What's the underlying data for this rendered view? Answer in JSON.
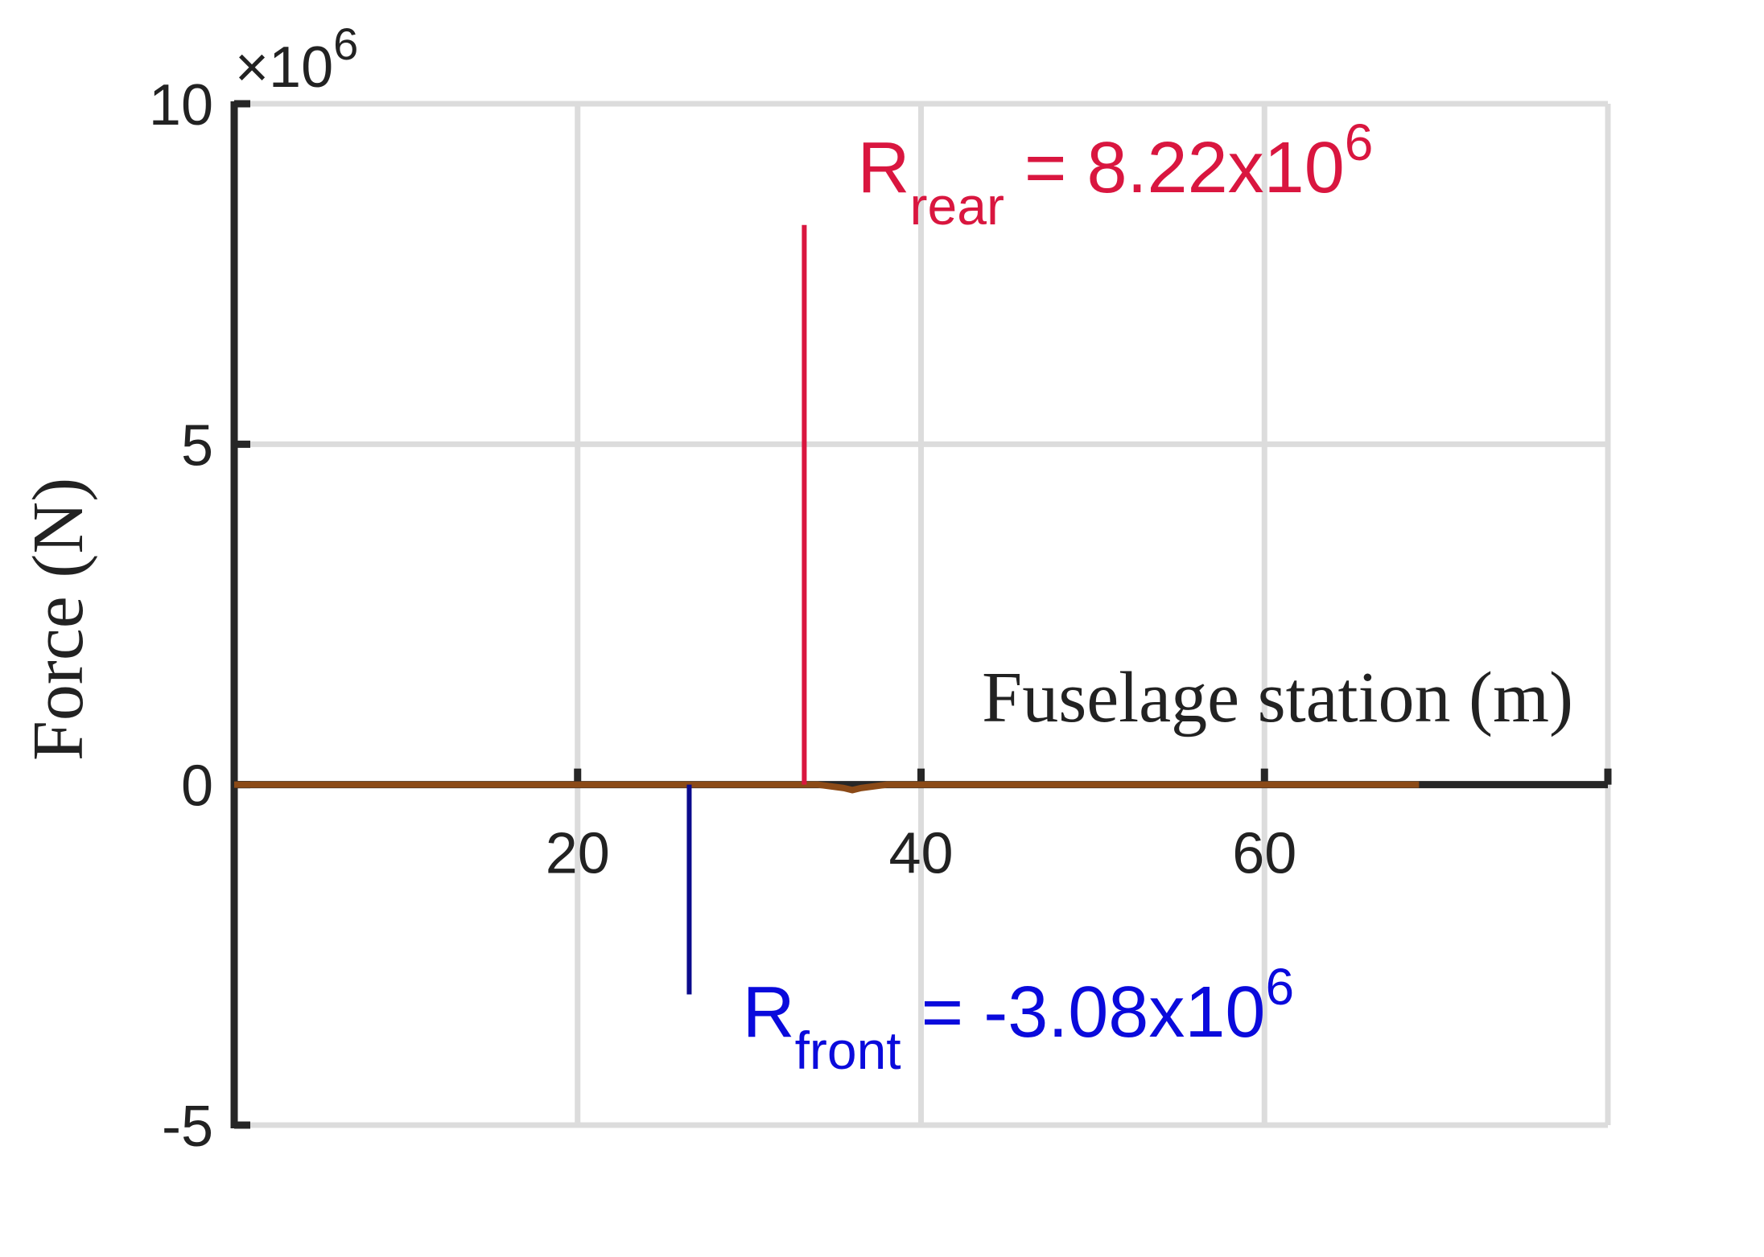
{
  "chart_data": {
    "type": "line",
    "xlabel": "Fuselage station (m)",
    "ylabel": "Force (N)",
    "y_exponent": {
      "base": "×10",
      "power": "6"
    },
    "xlim": [
      0,
      80
    ],
    "ylim": [
      -5,
      10
    ],
    "x_ticks": [
      20,
      40,
      60
    ],
    "x_tick_labels": [
      "20",
      "40",
      "60"
    ],
    "y_ticks": [
      -5,
      0,
      5,
      10
    ],
    "y_tick_labels": [
      "-5",
      "0",
      "5",
      "10"
    ],
    "grid": true,
    "series": [
      {
        "kind": "line",
        "color": "#8B4A17",
        "x": [
          0,
          10,
          20,
          30,
          34,
          35.5,
          36,
          36.5,
          38,
          45,
          55,
          65,
          69
        ],
        "y": [
          0,
          0,
          0,
          0,
          0,
          -0.05,
          -0.08,
          -0.05,
          0,
          0,
          0,
          0,
          0
        ]
      },
      {
        "kind": "stem",
        "color": "#D9163F",
        "x": 33.2,
        "y": 8.22
      },
      {
        "kind": "stem",
        "color": "#0A0A8C",
        "x": 26.5,
        "y": -3.08
      }
    ],
    "annotations": [
      {
        "main": "R",
        "sub": "rear",
        "rest": " = 8.22x10",
        "sup": "6",
        "color": "#D9163F",
        "x": 36.3,
        "y": 8.7
      },
      {
        "main": "R",
        "sub": "front",
        "rest": " = -3.08x10",
        "sup": "6",
        "color": "#0A0ADC",
        "x": 29.6,
        "y": -3.7
      }
    ]
  }
}
